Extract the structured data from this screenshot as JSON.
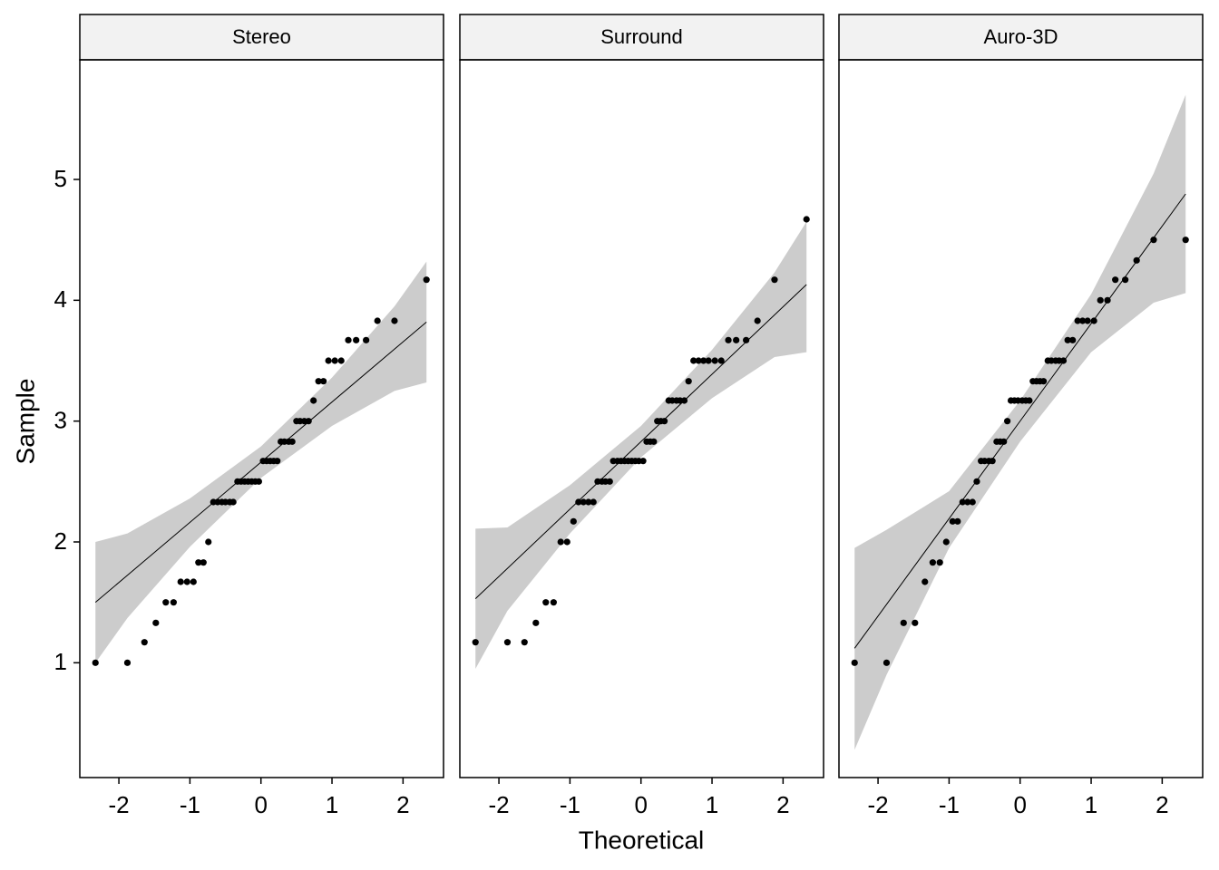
{
  "chart_data": {
    "type": "scatter",
    "xlabel": "Theoretical",
    "ylabel": "Sample",
    "xlim": [
      -2.55,
      2.57
    ],
    "ylim": [
      0.05,
      5.99
    ],
    "xticks": [
      -2,
      -1,
      0,
      1,
      2
    ],
    "yticks": [
      1,
      2,
      3,
      4,
      5
    ],
    "point_color": "#000000",
    "line_color": "#000000",
    "band_color": "#cccccc",
    "x": [
      -2.33,
      -1.88,
      -1.64,
      -1.48,
      -1.34,
      -1.23,
      -1.13,
      -1.04,
      -0.95,
      -0.88,
      -0.81,
      -0.74,
      -0.67,
      -0.61,
      -0.55,
      -0.5,
      -0.44,
      -0.39,
      -0.33,
      -0.28,
      -0.23,
      -0.18,
      -0.13,
      -0.08,
      -0.03,
      0.03,
      0.08,
      0.13,
      0.18,
      0.23,
      0.28,
      0.33,
      0.39,
      0.44,
      0.5,
      0.55,
      0.61,
      0.67,
      0.74,
      0.81,
      0.88,
      0.95,
      1.04,
      1.13,
      1.23,
      1.34,
      1.48,
      1.64,
      1.88,
      2.33
    ],
    "facets": [
      {
        "title": "Stereo",
        "values": [
          1.0,
          1.0,
          1.17,
          1.33,
          1.5,
          1.5,
          1.67,
          1.67,
          1.67,
          1.83,
          1.83,
          2.0,
          2.33,
          2.33,
          2.33,
          2.33,
          2.33,
          2.33,
          2.5,
          2.5,
          2.5,
          2.5,
          2.5,
          2.5,
          2.5,
          2.67,
          2.67,
          2.67,
          2.67,
          2.67,
          2.83,
          2.83,
          2.83,
          2.83,
          3.0,
          3.0,
          3.0,
          3.0,
          3.17,
          3.33,
          3.33,
          3.5,
          3.5,
          3.5,
          3.67,
          3.67,
          3.67,
          3.83,
          3.83,
          4.17
        ],
        "line": {
          "x": [
            -2.33,
            2.33
          ],
          "y": [
            1.5,
            3.82
          ]
        },
        "band": {
          "x": [
            -2.33,
            -1.88,
            -1,
            0,
            1,
            1.88,
            2.33
          ],
          "upper": [
            2.0,
            2.07,
            2.36,
            2.79,
            3.36,
            3.95,
            4.32
          ],
          "lower": [
            1.0,
            1.37,
            1.96,
            2.53,
            2.96,
            3.25,
            3.32
          ]
        }
      },
      {
        "title": "Surround",
        "values": [
          1.17,
          1.17,
          1.17,
          1.33,
          1.5,
          1.5,
          2.0,
          2.0,
          2.17,
          2.33,
          2.33,
          2.33,
          2.33,
          2.5,
          2.5,
          2.5,
          2.5,
          2.67,
          2.67,
          2.67,
          2.67,
          2.67,
          2.67,
          2.67,
          2.67,
          2.67,
          2.83,
          2.83,
          2.83,
          3.0,
          3.0,
          3.0,
          3.17,
          3.17,
          3.17,
          3.17,
          3.17,
          3.33,
          3.5,
          3.5,
          3.5,
          3.5,
          3.5,
          3.5,
          3.67,
          3.67,
          3.67,
          3.83,
          4.17,
          4.67
        ],
        "line": {
          "x": [
            -2.33,
            2.33
          ],
          "y": [
            1.53,
            4.13
          ]
        },
        "band": {
          "x": [
            -2.33,
            -1.88,
            -1,
            0,
            1,
            1.88,
            2.33
          ],
          "upper": [
            2.11,
            2.12,
            2.47,
            2.96,
            3.59,
            4.23,
            4.65
          ],
          "lower": [
            0.95,
            1.43,
            2.07,
            2.7,
            3.19,
            3.53,
            3.57
          ]
        }
      },
      {
        "title": "Auro-3D",
        "values": [
          1.0,
          1.0,
          1.33,
          1.33,
          1.67,
          1.83,
          1.83,
          2.0,
          2.17,
          2.17,
          2.33,
          2.33,
          2.33,
          2.5,
          2.67,
          2.67,
          2.67,
          2.67,
          2.83,
          2.83,
          2.83,
          3.0,
          3.17,
          3.17,
          3.17,
          3.17,
          3.17,
          3.17,
          3.33,
          3.33,
          3.33,
          3.33,
          3.5,
          3.5,
          3.5,
          3.5,
          3.5,
          3.67,
          3.67,
          3.83,
          3.83,
          3.83,
          3.83,
          4.0,
          4.0,
          4.17,
          4.17,
          4.33,
          4.5,
          4.5
        ],
        "line": {
          "x": [
            -2.33,
            2.33
          ],
          "y": [
            1.12,
            4.88
          ]
        },
        "band": {
          "x": [
            -2.33,
            -1.88,
            -1,
            0,
            1,
            1.88,
            2.33
          ],
          "upper": [
            1.95,
            2.1,
            2.42,
            3.17,
            4.05,
            5.05,
            5.7
          ],
          "lower": [
            0.28,
            0.9,
            1.95,
            2.83,
            3.57,
            3.98,
            4.06
          ]
        }
      }
    ]
  }
}
